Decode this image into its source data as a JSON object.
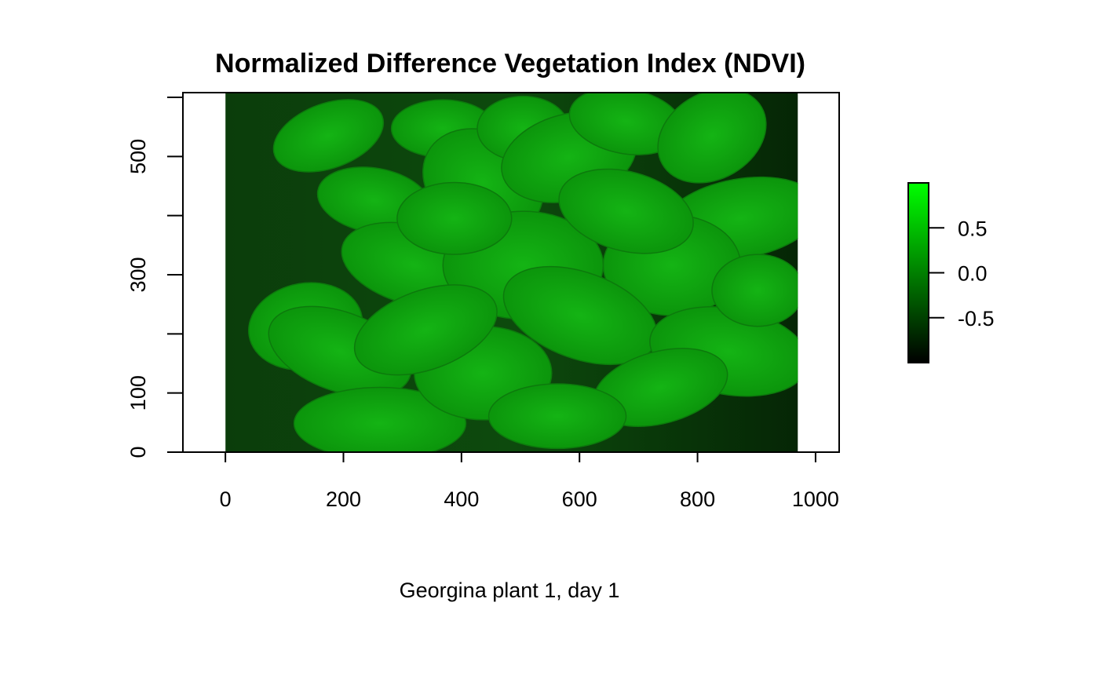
{
  "chart_data": {
    "type": "heatmap",
    "title": "Normalized Difference Vegetation Index (NDVI)",
    "xlabel": "Georgina plant 1, day 1",
    "ylabel": "",
    "x_ticks": [
      0,
      200,
      400,
      600,
      800,
      1000
    ],
    "x_tick_labels": [
      "0",
      "200",
      "400",
      "600",
      "800",
      "1000"
    ],
    "y_ticks": [
      0,
      100,
      200,
      300,
      400,
      500,
      600
    ],
    "y_tick_labels": [
      "0",
      "100",
      "",
      "300",
      "",
      "500",
      ""
    ],
    "xlim": [
      -72,
      1040
    ],
    "ylim": [
      0,
      608
    ],
    "image_extent": {
      "x": [
        0,
        970
      ],
      "y": [
        0,
        608
      ]
    },
    "colorbar": {
      "range": [
        -1,
        1
      ],
      "ticks": [
        0.5,
        0.0,
        -0.5
      ],
      "tick_labels": [
        "0.5",
        "0.0",
        "-0.5"
      ],
      "color_low": "#000000",
      "color_high": "#00ff00"
    },
    "background_color": "#0a3a0a",
    "leaf_color": "#0a9a0a",
    "grid": false
  }
}
